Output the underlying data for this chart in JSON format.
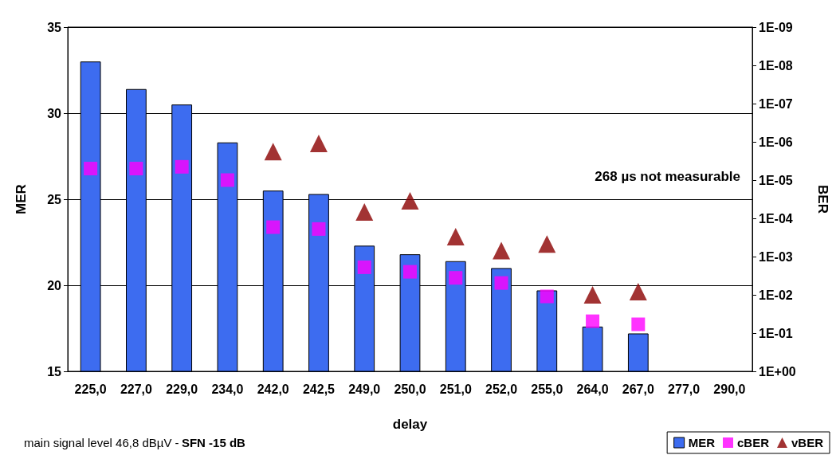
{
  "chart_data": {
    "type": "bar",
    "xlabel": "delay",
    "ylabel": "MER",
    "y2label": "BER",
    "categories": [
      "225,0",
      "227,0",
      "229,0",
      "234,0",
      "242,0",
      "242,5",
      "249,0",
      "250,0",
      "251,0",
      "252,0",
      "255,0",
      "264,0",
      "267,0",
      "277,0",
      "290,0"
    ],
    "series": [
      {
        "name": "MER",
        "color": "#3d6cf0",
        "values": [
          33.0,
          31.4,
          30.5,
          28.3,
          25.5,
          25.3,
          22.3,
          21.8,
          21.4,
          21.0,
          19.7,
          17.6,
          17.2,
          null,
          null
        ]
      },
      {
        "name": "cBER",
        "type": "scatter",
        "axis": "y2",
        "marker": "square",
        "color": "#ff00ff",
        "values": [
          5e-06,
          5e-06,
          4.5e-06,
          1e-05,
          0.00017,
          0.00019,
          0.0019,
          0.0025,
          0.0036,
          0.0049,
          0.011,
          0.049,
          0.059,
          null,
          null
        ]
      },
      {
        "name": "vBER",
        "type": "scatter",
        "axis": "y2",
        "marker": "triangle",
        "color": "#8b0000",
        "values": [
          null,
          null,
          null,
          null,
          1.8e-06,
          1.1e-06,
          6.8e-05,
          3.5e-05,
          0.0003,
          0.0007,
          0.00047,
          0.01,
          0.0083,
          null,
          null
        ]
      }
    ],
    "ylim": [
      15,
      35
    ],
    "yticks": [
      15,
      20,
      25,
      30,
      35
    ],
    "y2lim": [
      1,
      1e-09
    ],
    "log": "y2",
    "y2ticks": [
      {
        "value": 1,
        "label": "1E+00"
      },
      {
        "value": 0.1,
        "label": "1E-01"
      },
      {
        "value": 0.01,
        "label": "1E-02"
      },
      {
        "value": 0.001,
        "label": "1E-03"
      },
      {
        "value": 0.0001,
        "label": "1E-04"
      },
      {
        "value": 1e-05,
        "label": "1E-05"
      },
      {
        "value": 1e-06,
        "label": "1E-06"
      },
      {
        "value": 1e-07,
        "label": "1E-07"
      },
      {
        "value": 1e-08,
        "label": "1E-08"
      },
      {
        "value": 1e-09,
        "label": "1E-09"
      }
    ],
    "grid": "y",
    "legend": "bottom right",
    "annotations": [
      "268 µs not measurable",
      "main signal level 46,8 dBµV -",
      "SFN -15 dB"
    ]
  }
}
